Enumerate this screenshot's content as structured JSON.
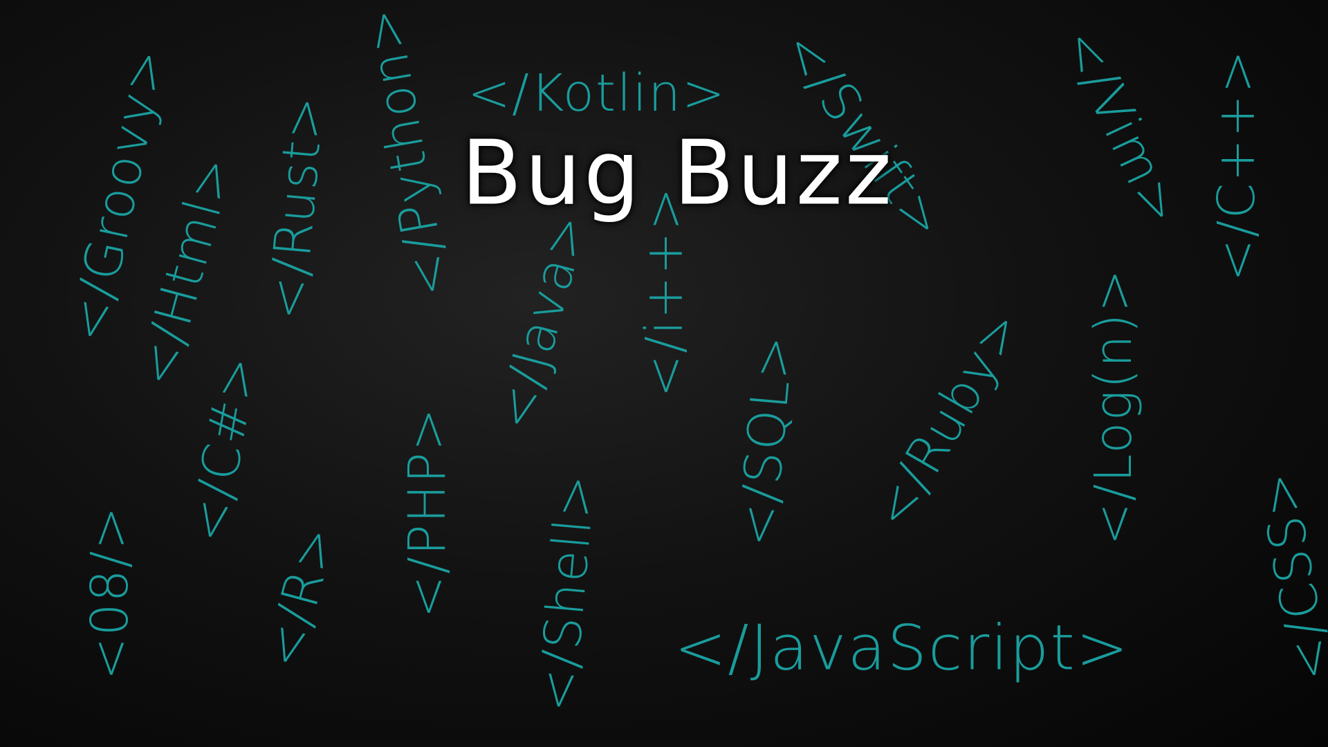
{
  "title": "Bug Buzz",
  "tags": [
    "</Kotlin>",
    "</JavaScript>",
    "</Groovy>",
    "</Html>",
    "</Rust>",
    "</Python>",
    "</Swift>",
    "</Vim>",
    "</C++>",
    "</Java>",
    "</i++>",
    "</C#>",
    "</PHP>",
    "</SQL>",
    "</Ruby>",
    "</Log(n)>",
    "</CSS>",
    "<08/>",
    "</R>",
    "</Shell>"
  ]
}
